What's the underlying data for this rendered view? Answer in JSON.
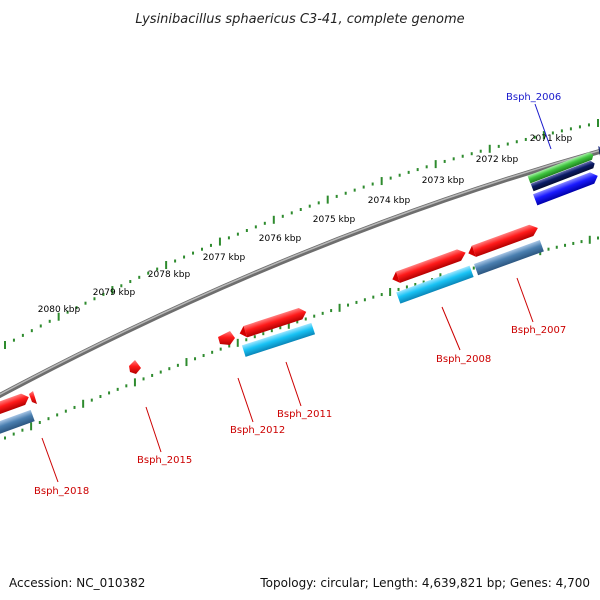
{
  "title": "Lysinibacillus sphaericus C3-41, complete genome",
  "accession_text": "Accession: NC_010382",
  "topology_text": "Topology: circular; Length: 4,639,821 bp; Genes: 4,700",
  "colors": {
    "backbone": "#8a8a8a",
    "ticks": "#2e8b2e",
    "gene_red": "#ff1a1a",
    "gene_cyan": "#19c3f5",
    "gene_steel": "#4a7fb0",
    "gene_green": "#3ec43e",
    "gene_navy": "#0a1a66",
    "gene_blue": "#1a1aff",
    "label_red": "#cc0000",
    "label_blue": "#1a1acc"
  },
  "kbp_labels": [
    "2071 kbp",
    "2072 kbp",
    "2073 kbp",
    "2074 kbp",
    "2075 kbp",
    "2076 kbp",
    "2077 kbp",
    "2078 kbp",
    "2079 kbp",
    "2080 kbp"
  ],
  "gene_labels": [
    "Bsph_2006",
    "Bsph_2007",
    "Bsph_2008",
    "Bsph_2011",
    "Bsph_2012",
    "Bsph_2015",
    "Bsph_2018"
  ]
}
